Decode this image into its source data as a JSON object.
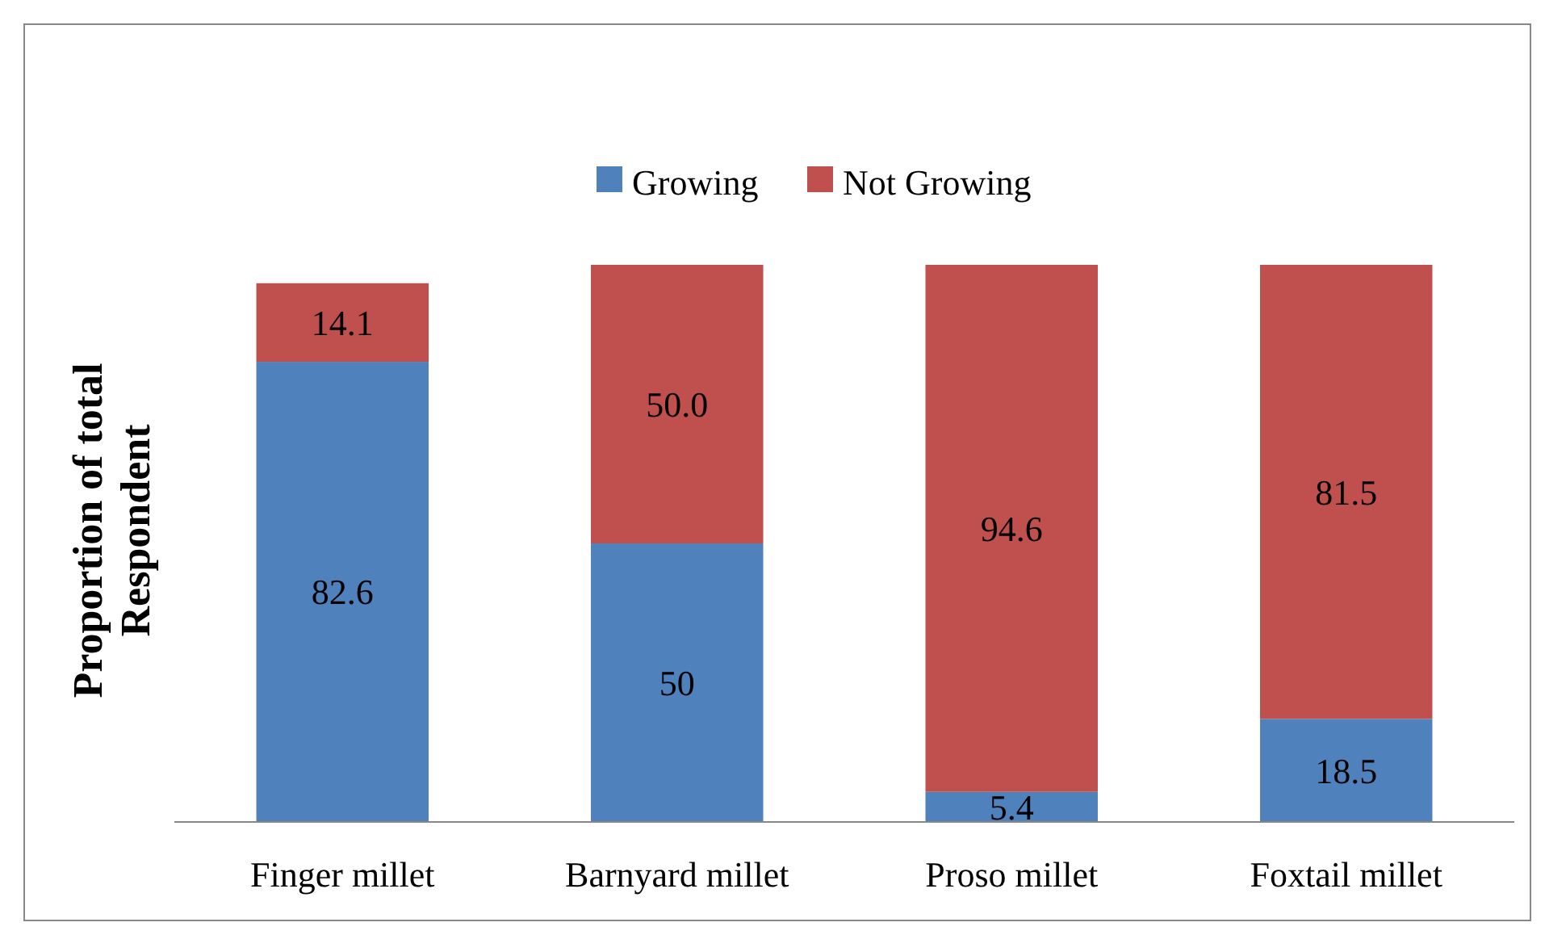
{
  "chart_data": {
    "type": "bar",
    "stacked": true,
    "ylabel": "Proportion of total Respondent",
    "categories": [
      "Finger millet",
      "Barnyard millet",
      "Proso millet",
      "Foxtail millet"
    ],
    "series": [
      {
        "name": "Growing",
        "color": "#4f81bd",
        "values": [
          82.6,
          50,
          5.4,
          18.5
        ],
        "value_labels": [
          "82.6",
          "50",
          "5.4",
          "18.5"
        ]
      },
      {
        "name": "Not Growing",
        "color": "#c0504d",
        "values": [
          14.1,
          50.0,
          94.6,
          81.5
        ],
        "value_labels": [
          "14.1",
          "50.0",
          "94.6",
          "81.5"
        ]
      }
    ],
    "legend": "top"
  }
}
